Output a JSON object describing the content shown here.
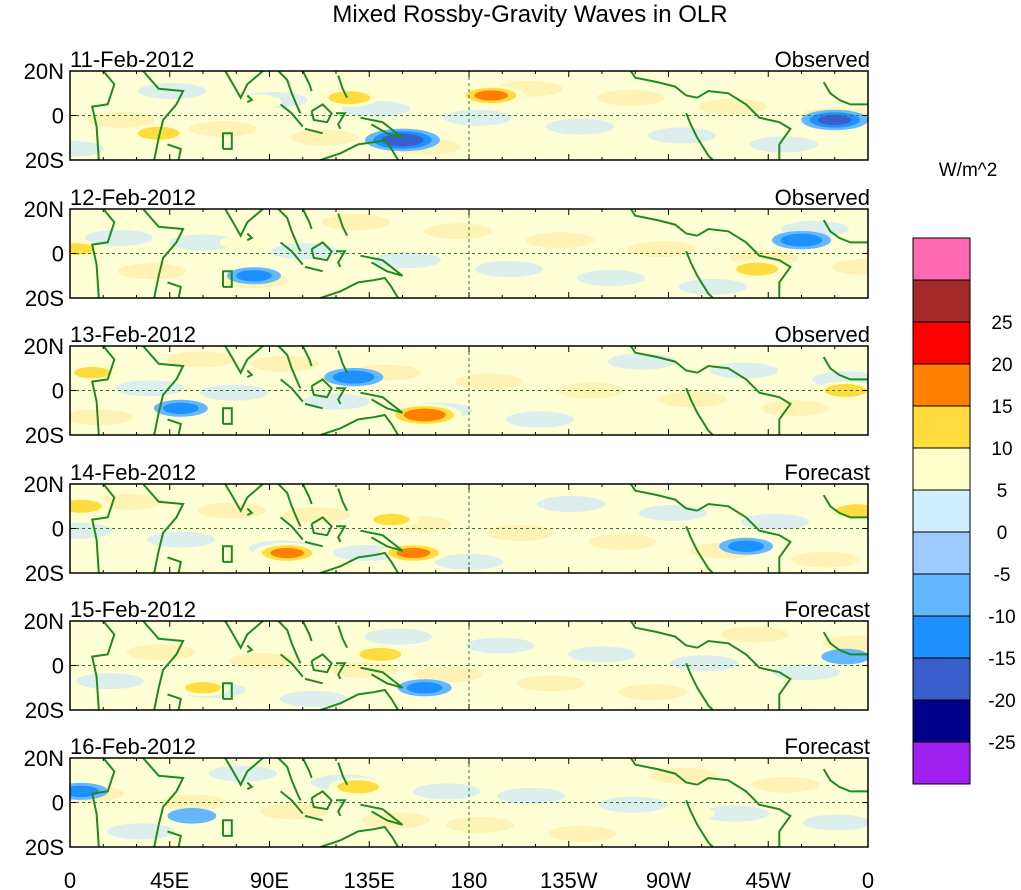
{
  "title": "Mixed Rossby-Gravity Waves in OLR",
  "colorbar": {
    "unit": "W/m^2",
    "colors": [
      "#a020f0",
      "#00008b",
      "#3a5fcd",
      "#1e90ff",
      "#63b8ff",
      "#9ecbff",
      "#d0f0ff",
      "#ffffcc",
      "#ffdc40",
      "#ff7f00",
      "#ff0000",
      "#a52a2a",
      "#ff69b4"
    ],
    "tick_labels": [
      "-25",
      "-20",
      "-15",
      "-10",
      "-5",
      "0",
      "5",
      "10",
      "15",
      "20",
      "25"
    ]
  },
  "chart_data": {
    "type": "heatmap",
    "title": "Mixed Rossby-Gravity Waves in OLR",
    "variable": "OLR anomaly (Mixed Rossby-Gravity wave filtered)",
    "unit": "W/m^2",
    "levels": [
      -25,
      -20,
      -15,
      -10,
      -5,
      0,
      5,
      10,
      15,
      20,
      25
    ],
    "x_ticks": [
      "0",
      "45E",
      "90E",
      "135E",
      "180",
      "135W",
      "90W",
      "45W",
      "0"
    ],
    "y_ticks": [
      "20N",
      "0",
      "20S"
    ],
    "xlim": [
      0,
      360
    ],
    "ylim": [
      -20,
      20
    ],
    "panels": [
      {
        "date": "11-Feb-2012",
        "status": "Observed",
        "anomalies": [
          {
            "lon": 190,
            "lat": 9,
            "value": 15,
            "sign": "positive"
          },
          {
            "lon": 126,
            "lat": 8,
            "value": 12,
            "sign": "positive"
          },
          {
            "lon": 40,
            "lat": -8,
            "value": 12,
            "sign": "positive"
          },
          {
            "lon": 150,
            "lat": -11,
            "value": -18,
            "sign": "negative"
          },
          {
            "lon": 345,
            "lat": -2,
            "value": -15,
            "sign": "negative"
          },
          {
            "lon": 85,
            "lat": 6,
            "value": 7,
            "sign": "positive"
          }
        ]
      },
      {
        "date": "12-Feb-2012",
        "status": "Observed",
        "anomalies": [
          {
            "lon": 310,
            "lat": -7,
            "value": 12,
            "sign": "positive"
          },
          {
            "lon": 3,
            "lat": 2,
            "value": 10,
            "sign": "positive"
          },
          {
            "lon": 83,
            "lat": -10,
            "value": -10,
            "sign": "negative"
          },
          {
            "lon": 330,
            "lat": 6,
            "value": -12,
            "sign": "negative"
          },
          {
            "lon": 78,
            "lat": 5,
            "value": 7,
            "sign": "positive"
          }
        ]
      },
      {
        "date": "13-Feb-2012",
        "status": "Observed",
        "anomalies": [
          {
            "lon": 160,
            "lat": -11,
            "value": 18,
            "sign": "positive"
          },
          {
            "lon": 350,
            "lat": 0,
            "value": 12,
            "sign": "positive"
          },
          {
            "lon": 10,
            "lat": 8,
            "value": 10,
            "sign": "positive"
          },
          {
            "lon": 128,
            "lat": 6,
            "value": -12,
            "sign": "negative"
          },
          {
            "lon": 50,
            "lat": -8,
            "value": -10,
            "sign": "negative"
          }
        ]
      },
      {
        "date": "14-Feb-2012",
        "status": "Forecast",
        "anomalies": [
          {
            "lon": 98,
            "lat": -11,
            "value": 15,
            "sign": "positive"
          },
          {
            "lon": 155,
            "lat": -11,
            "value": 15,
            "sign": "positive"
          },
          {
            "lon": 5,
            "lat": 10,
            "value": 12,
            "sign": "positive"
          },
          {
            "lon": 355,
            "lat": 8,
            "value": 12,
            "sign": "positive"
          },
          {
            "lon": 145,
            "lat": 4,
            "value": 10,
            "sign": "positive"
          },
          {
            "lon": 305,
            "lat": -8,
            "value": -10,
            "sign": "negative"
          }
        ]
      },
      {
        "date": "15-Feb-2012",
        "status": "Forecast",
        "anomalies": [
          {
            "lon": 140,
            "lat": 5,
            "value": 12,
            "sign": "positive"
          },
          {
            "lon": 60,
            "lat": -10,
            "value": 10,
            "sign": "positive"
          },
          {
            "lon": 160,
            "lat": -10,
            "value": -10,
            "sign": "negative"
          },
          {
            "lon": 350,
            "lat": 4,
            "value": -8,
            "sign": "negative"
          }
        ]
      },
      {
        "date": "16-Feb-2012",
        "status": "Forecast",
        "anomalies": [
          {
            "lon": 130,
            "lat": 7,
            "value": 12,
            "sign": "positive"
          },
          {
            "lon": 5,
            "lat": 5,
            "value": -10,
            "sign": "negative"
          },
          {
            "lon": 280,
            "lat": -5,
            "value": 8,
            "sign": "positive"
          },
          {
            "lon": 55,
            "lat": -6,
            "value": -8,
            "sign": "negative"
          }
        ]
      }
    ]
  }
}
